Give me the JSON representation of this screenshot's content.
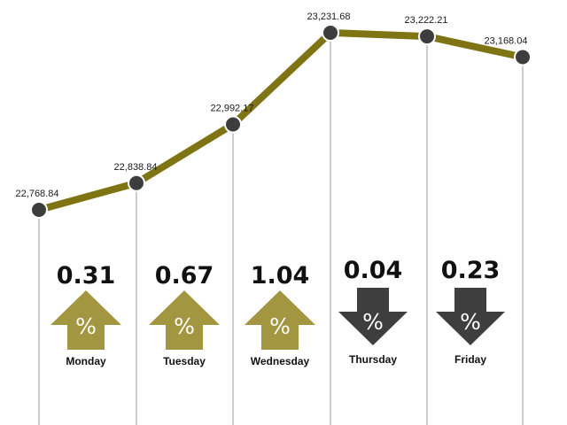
{
  "chart_data": {
    "type": "line",
    "categories": [
      "Monday",
      "Tuesday",
      "Wednesday",
      "Thursday",
      "Friday"
    ],
    "points": [
      {
        "label": "",
        "value": 22768.84,
        "value_text": "22,768.84"
      },
      {
        "label": "Monday",
        "value": 22838.84,
        "value_text": "22,838.84"
      },
      {
        "label": "Tuesday",
        "value": 22992.17,
        "value_text": "22,992.17"
      },
      {
        "label": "Wednesday",
        "value": 23231.68,
        "value_text": "23,231.68"
      },
      {
        "label": "Thursday",
        "value": 23222.21,
        "value_text": "23,222.21"
      },
      {
        "label": "Friday",
        "value": 23168.04,
        "value_text": "23,168.04"
      }
    ],
    "daily_changes": [
      {
        "day": "Monday",
        "change": "0.31",
        "direction": "up"
      },
      {
        "day": "Tuesday",
        "change": "0.67",
        "direction": "up"
      },
      {
        "day": "Wednesday",
        "change": "1.04",
        "direction": "up"
      },
      {
        "day": "Thursday",
        "change": "0.04",
        "direction": "down"
      },
      {
        "day": "Friday",
        "change": "0.23",
        "direction": "down"
      }
    ],
    "arrow_symbol": "%",
    "colors": {
      "line": "#7f7414",
      "marker": "#3d3d3d",
      "up_arrow": "#a39640",
      "down_arrow": "#3e3e3e",
      "guide": "#9a9a9a"
    }
  }
}
